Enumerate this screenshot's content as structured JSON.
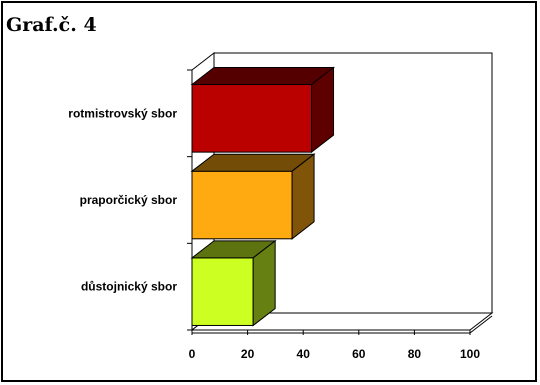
{
  "figure_title": "Graf.č. 4",
  "chart_data": {
    "type": "bar",
    "orientation": "horizontal",
    "style": "3d",
    "categories": [
      "rotmistrovský sbor",
      "praporčický sbor",
      "důstojnický sbor"
    ],
    "values": [
      43,
      36,
      22
    ],
    "colors": [
      "#bb0000",
      "#ffaa11",
      "#ccff22"
    ],
    "xlim": [
      0,
      100
    ],
    "xticks": [
      0,
      20,
      40,
      60,
      80,
      100
    ],
    "grid": false,
    "legend": "none"
  }
}
